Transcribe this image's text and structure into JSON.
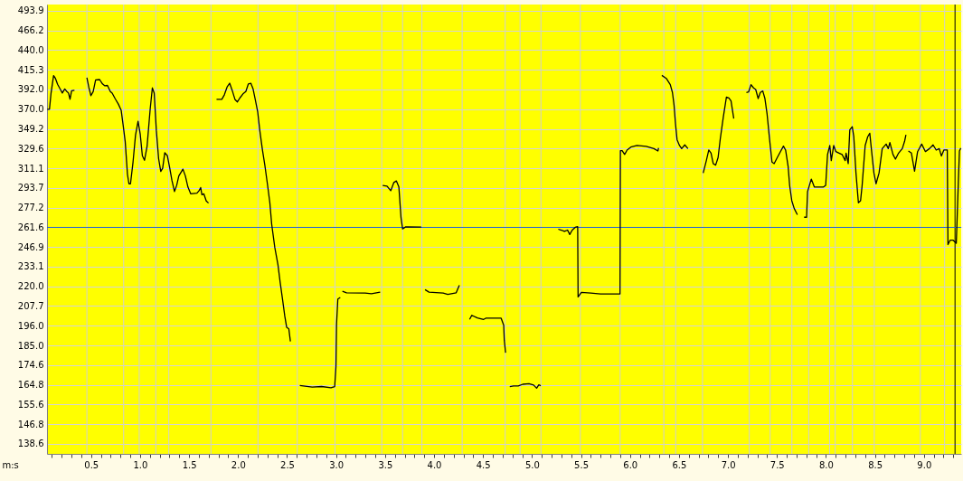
{
  "chart_data": {
    "type": "line",
    "xlabel": "m:s",
    "log": "y",
    "grid": "y",
    "xlim": [
      0.05,
      9.38
    ],
    "ylim": [
      134.6,
      503
    ],
    "xticks": [
      {
        "value": 0.1,
        "label": null
      },
      {
        "value": 0.2,
        "label": null
      },
      {
        "value": 0.3,
        "label": null
      },
      {
        "value": 0.4,
        "label": null
      },
      0.5,
      {
        "value": 0.6,
        "label": null
      },
      {
        "value": 0.7,
        "label": null
      },
      {
        "value": 0.8,
        "label": null
      },
      {
        "value": 0.9,
        "label": null
      },
      {
        "value": 1,
        "label": "1.0"
      },
      {
        "value": 1.1,
        "label": null
      },
      {
        "value": 1.2,
        "label": null
      },
      {
        "value": 1.3,
        "label": null
      },
      {
        "value": 1.4,
        "label": null
      },
      1.5,
      {
        "value": 1.6,
        "label": null
      },
      {
        "value": 1.7,
        "label": null
      },
      {
        "value": 1.8,
        "label": null
      },
      {
        "value": 1.9,
        "label": null
      },
      {
        "value": 2,
        "label": "2.0"
      },
      {
        "value": 2.1,
        "label": null
      },
      {
        "value": 2.2,
        "label": null
      },
      {
        "value": 2.3,
        "label": null
      },
      {
        "value": 2.4,
        "label": null
      },
      2.5,
      {
        "value": 2.6,
        "label": null
      },
      {
        "value": 2.7,
        "label": null
      },
      {
        "value": 2.8,
        "label": null
      },
      {
        "value": 2.9,
        "label": null
      },
      {
        "value": 3,
        "label": "3.0"
      },
      {
        "value": 3.1,
        "label": null
      },
      {
        "value": 3.2,
        "label": null
      },
      {
        "value": 3.3,
        "label": null
      },
      {
        "value": 3.4,
        "label": null
      },
      3.5,
      {
        "value": 3.6,
        "label": null
      },
      {
        "value": 3.7,
        "label": null
      },
      {
        "value": 3.8,
        "label": null
      },
      {
        "value": 3.9,
        "label": null
      },
      {
        "value": 4,
        "label": "4.0"
      },
      {
        "value": 4.1,
        "label": null
      },
      {
        "value": 4.2,
        "label": null
      },
      {
        "value": 4.3,
        "label": null
      },
      {
        "value": 4.4,
        "label": null
      },
      4.5,
      {
        "value": 4.6,
        "label": null
      },
      {
        "value": 4.7,
        "label": null
      },
      {
        "value": 4.8,
        "label": null
      },
      {
        "value": 4.9,
        "label": null
      },
      {
        "value": 5,
        "label": "5.0"
      },
      {
        "value": 5.1,
        "label": null
      },
      {
        "value": 5.2,
        "label": null
      },
      {
        "value": 5.3,
        "label": null
      },
      {
        "value": 5.4,
        "label": null
      },
      5.5,
      {
        "value": 5.6,
        "label": null
      },
      {
        "value": 5.7,
        "label": null
      },
      {
        "value": 5.8,
        "label": null
      },
      {
        "value": 5.9,
        "label": null
      },
      {
        "value": 6,
        "label": "6.0"
      },
      {
        "value": 6.1,
        "label": null
      },
      {
        "value": 6.2,
        "label": null
      },
      {
        "value": 6.3,
        "label": null
      },
      {
        "value": 6.4,
        "label": null
      },
      6.5,
      {
        "value": 6.6,
        "label": null
      },
      {
        "value": 6.7,
        "label": null
      },
      {
        "value": 6.8,
        "label": null
      },
      {
        "value": 6.9,
        "label": null
      },
      {
        "value": 7,
        "label": "7.0"
      },
      {
        "value": 7.1,
        "label": null
      },
      {
        "value": 7.2,
        "label": null
      },
      {
        "value": 7.3,
        "label": null
      },
      {
        "value": 7.4,
        "label": null
      },
      7.5,
      {
        "value": 7.6,
        "label": null
      },
      {
        "value": 7.7,
        "label": null
      },
      {
        "value": 7.8,
        "label": null
      },
      {
        "value": 7.9,
        "label": null
      },
      {
        "value": 8,
        "label": "8.0"
      },
      {
        "value": 8.1,
        "label": null
      },
      {
        "value": 8.2,
        "label": null
      },
      {
        "value": 8.3,
        "label": null
      },
      {
        "value": 8.4,
        "label": null
      },
      8.5,
      {
        "value": 8.6,
        "label": null
      },
      {
        "value": 8.7,
        "label": null
      },
      {
        "value": 8.8,
        "label": null
      },
      {
        "value": 8.9,
        "label": null
      },
      {
        "value": 9,
        "label": "9.0"
      },
      {
        "value": 9.1,
        "label": null
      },
      {
        "value": 9.2,
        "label": null
      },
      {
        "value": 9.3,
        "label": null
      }
    ],
    "yticks": [
      138.6,
      146.8,
      155.6,
      164.8,
      174.6,
      {
        "value": 185,
        "label": "185.0"
      },
      {
        "value": 196,
        "label": "196.0"
      },
      207.7,
      {
        "value": 220,
        "label": "220.0"
      },
      233.1,
      246.9,
      261.6,
      277.2,
      293.7,
      311.1,
      329.6,
      349.2,
      {
        "value": 370,
        "label": "370.0"
      },
      {
        "value": 392,
        "label": "392.0"
      },
      415.3,
      {
        "value": 440,
        "label": "440.0"
      },
      466.2,
      493.9
    ],
    "ref_lines": [
      {
        "axis": "x",
        "value": 0.457,
        "color": "#d0d0d0"
      },
      {
        "axis": "x",
        "value": 0.832,
        "color": "#d0d0d0"
      },
      {
        "axis": "x",
        "value": 0.991,
        "color": "#d0d0d0"
      },
      {
        "axis": "x",
        "value": 1.16,
        "color": "#d0d0d0"
      },
      {
        "axis": "x",
        "value": 1.293,
        "color": "#d0d0d0"
      },
      {
        "axis": "x",
        "value": 1.723,
        "color": "#d0d0d0"
      },
      {
        "axis": "x",
        "value": 2.203,
        "color": "#d0d0d0"
      },
      {
        "axis": "x",
        "value": 2.604,
        "color": "#d0d0d0"
      },
      {
        "axis": "x",
        "value": 2.989,
        "color": "#d0d0d0"
      },
      {
        "axis": "x",
        "value": 3.466,
        "color": "#d0d0d0"
      },
      {
        "axis": "x",
        "value": 3.679,
        "color": "#d0d0d0"
      },
      {
        "axis": "x",
        "value": 3.876,
        "color": "#d0d0d0"
      },
      {
        "axis": "x",
        "value": 4.287,
        "color": "#d0d0d0"
      },
      {
        "axis": "x",
        "value": 4.726,
        "color": "#d0d0d0"
      },
      {
        "axis": "x",
        "value": 4.878,
        "color": "#d0d0d0"
      },
      {
        "axis": "x",
        "value": 5.091,
        "color": "#d0d0d0"
      },
      {
        "axis": "x",
        "value": 5.493,
        "color": "#d0d0d0"
      },
      {
        "axis": "x",
        "value": 5.899,
        "color": "#d0d0d0"
      },
      {
        "axis": "x",
        "value": 6.345,
        "color": "#d0d0d0"
      },
      {
        "axis": "x",
        "value": 6.466,
        "color": "#d0d0d0"
      },
      {
        "axis": "x",
        "value": 6.74,
        "color": "#d0d0d0"
      },
      {
        "axis": "x",
        "value": 7.217,
        "color": "#d0d0d0"
      },
      {
        "axis": "x",
        "value": 7.43,
        "color": "#d0d0d0"
      },
      {
        "axis": "x",
        "value": 7.652,
        "color": "#d0d0d0"
      },
      {
        "axis": "x",
        "value": 7.824,
        "color": "#d0d0d0"
      },
      {
        "axis": "x",
        "value": 8.037,
        "color": "#d0d0d0"
      },
      {
        "axis": "x",
        "value": 8.094,
        "color": "#d0d0d0"
      },
      {
        "axis": "x",
        "value": 8.27,
        "color": "#d0d0d0"
      },
      {
        "axis": "x",
        "value": 8.493,
        "color": "#d0d0d0"
      },
      {
        "axis": "x",
        "value": 8.963,
        "color": "#d0d0d0"
      },
      {
        "axis": "x",
        "value": 9.211,
        "color": "#d0d0d0"
      },
      {
        "axis": "y",
        "value": 261.6,
        "color": "#2060d0"
      },
      {
        "axis": "x",
        "value": 9.317,
        "color": "#000000"
      }
    ],
    "series": [
      {
        "color": "#000000",
        "x": [
          0.053,
          0.075,
          0.091,
          0.117,
          0.136,
          0.158,
          0.187,
          0.206,
          0.231,
          0.25,
          0.269,
          0.285,
          0.301,
          0.33,
          0.4,
          0.457,
          0.476,
          0.498,
          0.521,
          0.546,
          0.587,
          0.616,
          0.638,
          0.667,
          0.696,
          0.715,
          0.746,
          0.778,
          0.807,
          0.826,
          0.848,
          0.871,
          0.886,
          0.902,
          0.928,
          0.953,
          0.979,
          1.001,
          1.023,
          1.045,
          1.071,
          1.103,
          1.125,
          1.144,
          1.166,
          1.189,
          1.211,
          1.23,
          1.252,
          1.278,
          1.303,
          1.325,
          1.351,
          1.373,
          1.395,
          1.437,
          1.462,
          1.488,
          1.516,
          1.58,
          1.602,
          1.618,
          1.631,
          1.65,
          1.675,
          1.698,
          1.74,
          1.78,
          1.834,
          1.86,
          1.888,
          1.914,
          1.939,
          1.968,
          1.993,
          2.019,
          2.05,
          2.079,
          2.105,
          2.13,
          2.152,
          2.175,
          2.2,
          2.222,
          2.248,
          2.273,
          2.299,
          2.324,
          2.343,
          2.375,
          2.407,
          2.429,
          2.455,
          2.477,
          2.496,
          2.518,
          2.534,
          2.58,
          2.63,
          2.757,
          2.852,
          2.948,
          2.986,
          2.999,
          3.005,
          3.018,
          3.043,
          3.055,
          3.065,
          3.107,
          3.297,
          3.361,
          3.45,
          3.463,
          3.476,
          3.52,
          3.558,
          3.59,
          3.615,
          3.641,
          3.663,
          3.679,
          3.711,
          3.87,
          3.89,
          3.908,
          3.949,
          4.093,
          4.14,
          4.226,
          4.258,
          4.3,
          4.363,
          4.385,
          4.442,
          4.506,
          4.528,
          4.685,
          4.711,
          4.717,
          4.73,
          4.75,
          4.773,
          4.811,
          4.859,
          4.906,
          4.969,
          5.016,
          5.047,
          5.069,
          5.089,
          5.2,
          5.268,
          5.299,
          5.331,
          5.363,
          5.385,
          5.41,
          5.441,
          5.466,
          5.47,
          5.504,
          5.599,
          5.699,
          5.898,
          5.902,
          5.92,
          5.945,
          5.97,
          6.008,
          6.071,
          6.165,
          6.244,
          6.285,
          6.291,
          6.31,
          6.325,
          6.37,
          6.411,
          6.433,
          6.449,
          6.464,
          6.48,
          6.505,
          6.527,
          6.559,
          6.591,
          6.7,
          6.747,
          6.779,
          6.804,
          6.827,
          6.849,
          6.874,
          6.899,
          6.921,
          6.952,
          6.984,
          7.009,
          7.031,
          7.047,
          7.059,
          7.15,
          7.188,
          7.21,
          7.235,
          7.261,
          7.283,
          7.308,
          7.33,
          7.355,
          7.377,
          7.399,
          7.424,
          7.449,
          7.471,
          7.503,
          7.535,
          7.566,
          7.588,
          7.614,
          7.629,
          7.651,
          7.676,
          7.708,
          7.75,
          7.777,
          7.802,
          7.812,
          7.85,
          7.881,
          7.928,
          7.975,
          7.997,
          8.016,
          8.039,
          8.054,
          8.079,
          8.101,
          8.133,
          8.164,
          8.196,
          8.205,
          8.227,
          8.243,
          8.268,
          8.284,
          8.306,
          8.331,
          8.353,
          8.369,
          8.4,
          8.426,
          8.447,
          8.463,
          8.489,
          8.511,
          8.542,
          8.574,
          8.614,
          8.636,
          8.652,
          8.684,
          8.709,
          8.741,
          8.779,
          8.803,
          8.816,
          8.83,
          8.841,
          8.872,
          8.904,
          8.935,
          8.977,
          9.015,
          9.056,
          9.093,
          9.125,
          9.156,
          9.178,
          9.203,
          9.238,
          9.245,
          9.267,
          9.298,
          9.33,
          9.352,
          9.362,
          9.376
        ],
        "values": [
          369.9,
          370,
          387.8,
          408.4,
          405,
          398,
          392,
          388,
          392.7,
          390,
          388,
          381,
          390.5,
          391,
          null,
          405.8,
          394.9,
          385,
          389.6,
          403.3,
          403.6,
          398.5,
          396.4,
          396.7,
          389.6,
          387.8,
          381.5,
          375.6,
          368.7,
          353.8,
          336.4,
          305.6,
          297.3,
          297.3,
          317,
          342.7,
          357.1,
          344.2,
          322.8,
          318.5,
          331.7,
          370.3,
          393.8,
          387.8,
          347.3,
          320,
          308.3,
          311.1,
          325.7,
          322.8,
          311.1,
          300.1,
          290.6,
          295.8,
          304.2,
          310.3,
          304.2,
          294.5,
          288.7,
          289.2,
          291.3,
          294,
          287.9,
          288.7,
          282.7,
          280.9,
          null,
          380.8,
          380.8,
          386,
          394.9,
          399.3,
          391.3,
          380.8,
          378,
          382.5,
          387,
          389.6,
          398.5,
          399.3,
          393.1,
          380.8,
          367.3,
          347.3,
          328.7,
          314,
          297.3,
          281.4,
          264,
          246.5,
          234.4,
          222.9,
          211.2,
          201.5,
          195.1,
          194.2,
          187.2,
          null,
          164.5,
          163.7,
          164,
          163.4,
          164,
          174,
          196.9,
          212,
          213,
          null,
          216.9,
          215.9,
          215.7,
          215.3,
          216.3,
          null,
          295.8,
          295.3,
          291.3,
          298.4,
          299.8,
          294.5,
          269,
          260.4,
          262,
          261.8,
          null,
          217.9,
          216.3,
          215.7,
          214.9,
          215.9,
          220.8,
          null,
          199.7,
          202.1,
          200.6,
          199.7,
          200.4,
          200.4,
          196.3,
          187.8,
          181.1,
          null,
          164,
          164.3,
          164.3,
          165.1,
          165.4,
          164.7,
          163.2,
          164.8,
          164.4,
          null,
          260.2,
          259.5,
          258.5,
          259.5,
          256.2,
          259.5,
          261.6,
          262.2,
          213.3,
          216.2,
          215.8,
          215.2,
          215.2,
          327.6,
          327.6,
          324,
          328.2,
          331.1,
          332.6,
          331.7,
          329.6,
          327.3,
          330.2,
          null,
          408.6,
          405,
          397.6,
          388.6,
          374.9,
          354.6,
          338.4,
          332.6,
          329.6,
          333.2,
          329.6,
          null,
          306.8,
          318.2,
          328.2,
          325.3,
          315.4,
          314,
          321.1,
          339,
          361.4,
          383.4,
          382.4,
          379,
          368,
          360,
          null,
          388.6,
          389.2,
          397.6,
          393.8,
          392,
          381.7,
          388.6,
          390.3,
          381.7,
          364.7,
          339,
          316.8,
          315.4,
          321.1,
          326.7,
          332,
          328.2,
          312.5,
          295.9,
          282.9,
          276.5,
          271.5,
          null,
          269.5,
          269.5,
          290.6,
          301.4,
          294.5,
          294.5,
          294.5,
          295.9,
          324,
          332.6,
          318.2,
          332.6,
          326.7,
          325.3,
          324,
          318.2,
          325.3,
          315.4,
          348.3,
          351.5,
          341.3,
          307,
          281.2,
          282.9,
          295.9,
          332.6,
          341.3,
          344.8,
          329.6,
          307,
          297.3,
          307,
          329.6,
          334,
          329.6,
          335.5,
          324,
          319.6,
          325.3,
          329.6,
          337,
          343.1,
          null,
          327.3,
          325.3,
          308.4,
          326.7,
          334,
          326.7,
          329.6,
          333.2,
          328.2,
          329.6,
          322.5,
          328.2,
          328.2,
          248.7,
          251.9,
          251.9,
          249.7,
          301.4,
          327.3,
          330.2
        ]
      }
    ]
  }
}
